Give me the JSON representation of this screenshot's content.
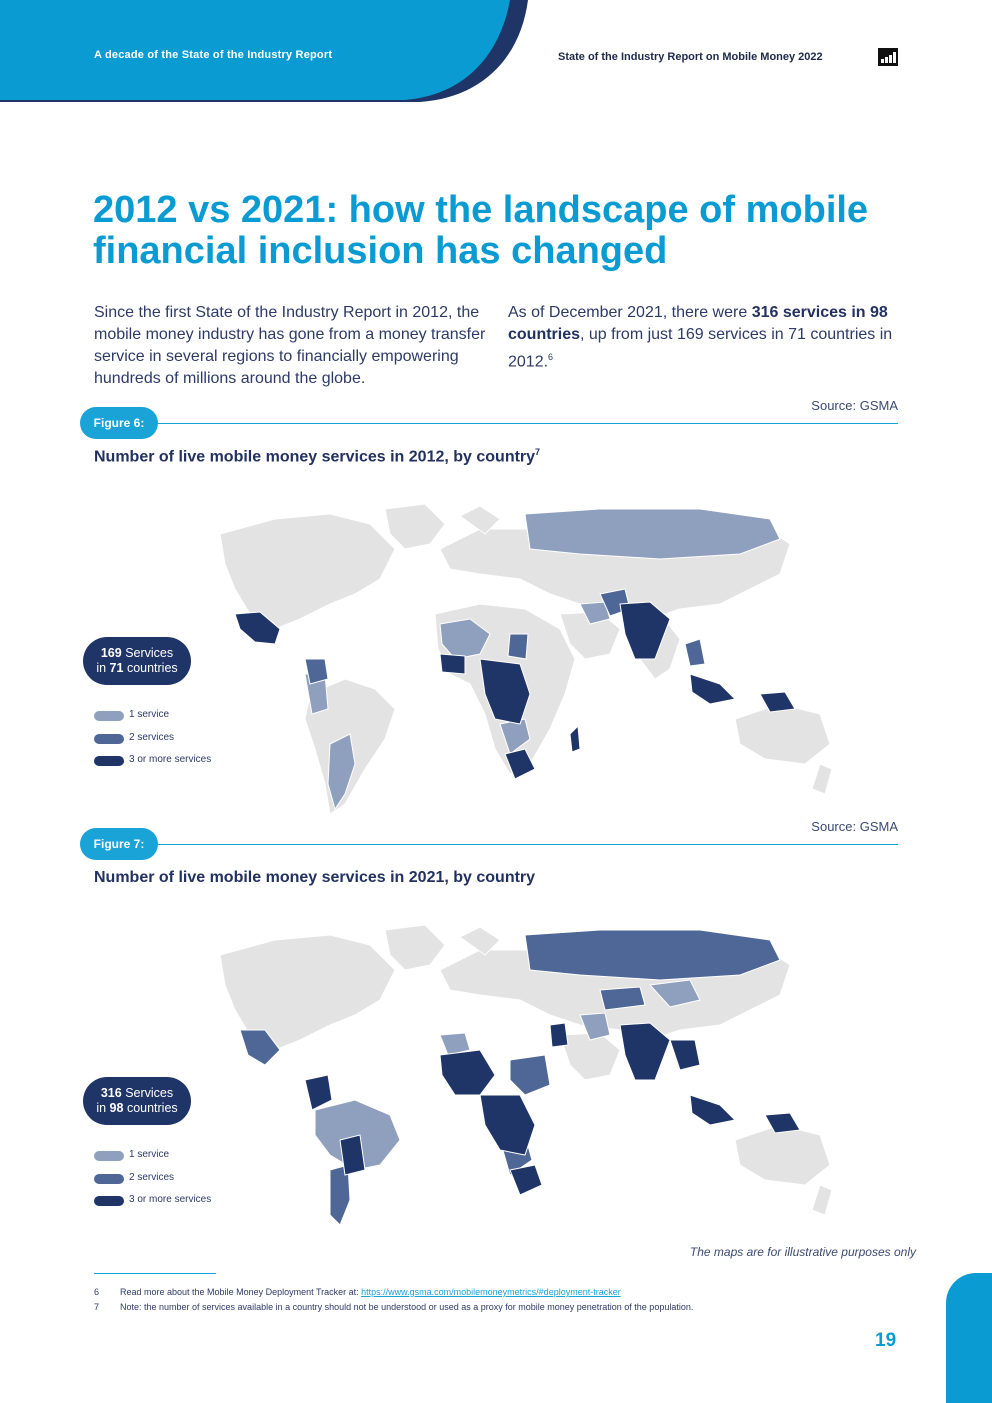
{
  "header": {
    "left_text": "A decade of the State of the Industry Report",
    "right_text": "State of the Industry Report on Mobile Money 2022",
    "icon": "report-icon",
    "colors": {
      "primary": "#0a9bd2",
      "dark": "#1f3467"
    }
  },
  "title": "2012 vs 2021: how the landscape of mobile financial inclusion has changed",
  "intro": {
    "left": "Since the first State of the Industry Report in 2012, the mobile money industry has gone from a money transfer service in several regions to financially empowering hundreds of millions around the globe.",
    "right_prefix": "As of December 2021, there were ",
    "right_bold": "316 services in 98 countries",
    "right_suffix": ", up from just 169 services in 71 countries in 2012.",
    "right_footnote": "6"
  },
  "figures": [
    {
      "label": "Figure 6:",
      "source": "Source: GSMA",
      "title": "Number of live mobile money services in 2012, by country",
      "title_footnote": "7",
      "services": "169",
      "services_word": "Services",
      "countries_prefix": "in",
      "countries": "71",
      "countries_word": "countries"
    },
    {
      "label": "Figure 7:",
      "source": "Source: GSMA",
      "title": "Number of live mobile money services in 2021, by country",
      "services": "316",
      "services_word": "Services",
      "countries_prefix": "in",
      "countries": "98",
      "countries_word": "countries"
    }
  ],
  "legend": [
    {
      "label": "1 service",
      "color": "#8f9fbe"
    },
    {
      "label": "2 services",
      "color": "#4f6796"
    },
    {
      "label": "3 or more services",
      "color": "#1f3467"
    }
  ],
  "map_colors": {
    "none": "#e3e3e3",
    "one": "#8f9fbe",
    "two": "#4f6796",
    "three": "#1f3467"
  },
  "disclaimer": "The maps are for illustrative purposes only",
  "footnotes": [
    {
      "num": "6",
      "text": "Read more about the Mobile Money Deployment Tracker at: ",
      "link": "https://www.gsma.com/mobilemoneymetrics/#deployment-tracker"
    },
    {
      "num": "7",
      "text": "Note: the number of services available in a country should not be understood or used as a proxy for mobile money penetration of the population."
    }
  ],
  "page_number": "19"
}
